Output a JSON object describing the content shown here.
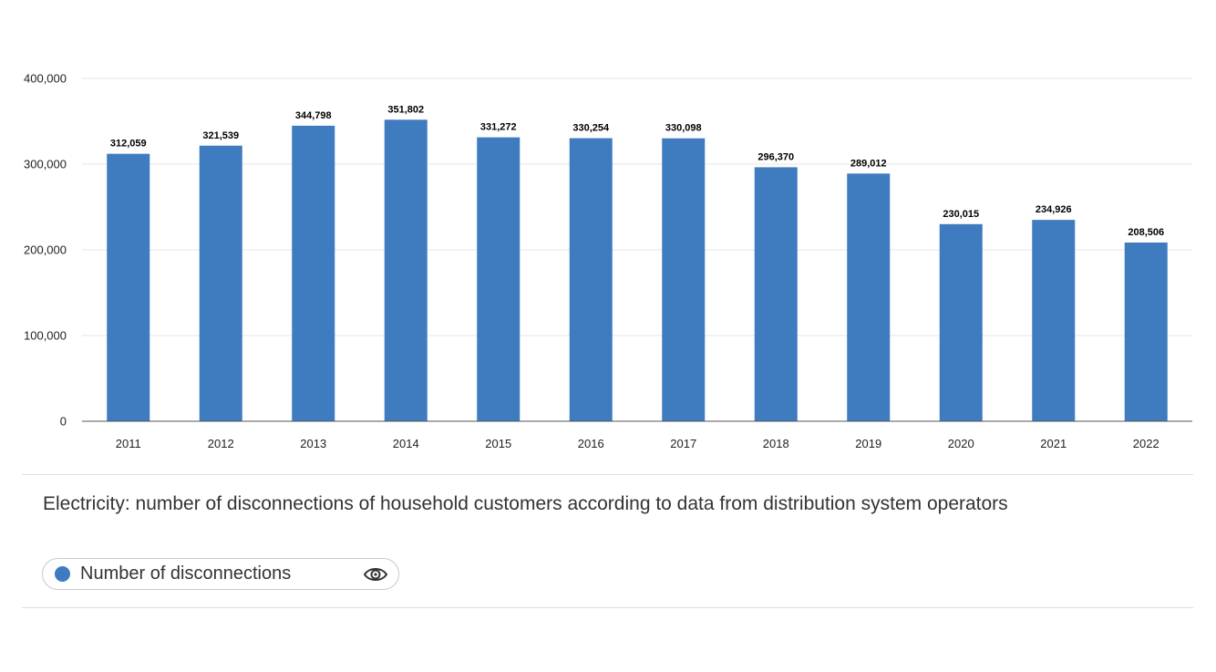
{
  "chart_data": {
    "type": "bar",
    "title": "Electricity: number of disconnections of household customers according to data from distribution system operators",
    "categories": [
      "2011",
      "2012",
      "2013",
      "2014",
      "2015",
      "2016",
      "2017",
      "2018",
      "2019",
      "2020",
      "2021",
      "2022"
    ],
    "series": [
      {
        "name": "Number of disconnections",
        "values": [
          312059,
          321539,
          344798,
          351802,
          331272,
          330254,
          330098,
          296370,
          289012,
          230015,
          234926,
          208506
        ],
        "labels": [
          "312,059",
          "321,539",
          "344,798",
          "351,802",
          "331,272",
          "330,254",
          "330,098",
          "296,370",
          "289,012",
          "230,015",
          "234,926",
          "208,506"
        ]
      }
    ],
    "yticks": [
      0,
      100000,
      200000,
      300000,
      400000
    ],
    "ytick_labels": [
      "0",
      "100,000",
      "200,000",
      "300,000",
      "400,000"
    ],
    "ylim": [
      0,
      400000
    ],
    "xlabel": "",
    "ylabel": "",
    "grid": true,
    "legend_position": "bottom-left",
    "bar_color": "#3f7bbf"
  },
  "legend": {
    "label": "Number of disconnections",
    "icon": "eye-icon"
  }
}
